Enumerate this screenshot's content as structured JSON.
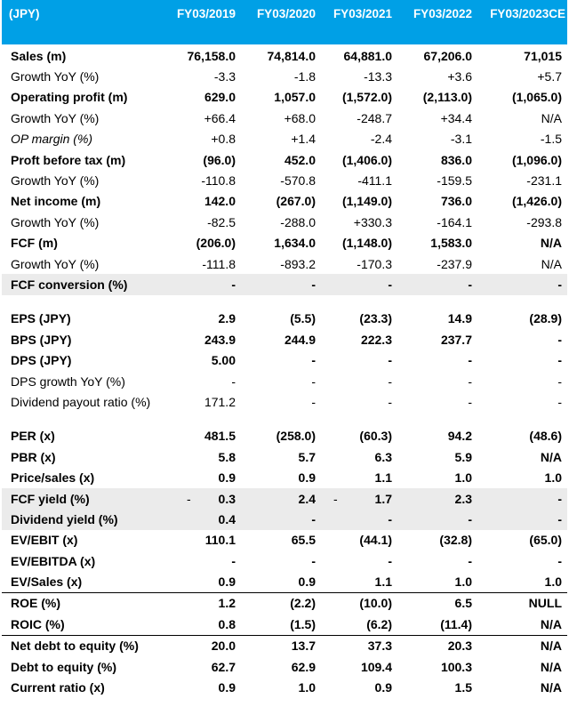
{
  "header": {
    "unit": "(JPY)",
    "years": [
      "FY03/2019",
      "FY03/2020",
      "FY03/2021",
      "FY03/2022",
      "FY03/2023CE"
    ]
  },
  "rows": [
    {
      "label": "Sales (m)",
      "values": [
        "76,158.0",
        "74,814.0",
        "64,881.0",
        "67,206.0",
        "71,015"
      ]
    },
    {
      "label": "Growth YoY (%)",
      "values": [
        "-3.3",
        "-1.8",
        "-13.3",
        "+3.6",
        "+5.7"
      ]
    },
    {
      "label": "Operating profit (m)",
      "values": [
        "629.0",
        "1,057.0",
        "(1,572.0)",
        "(2,113.0)",
        "(1,065.0)"
      ]
    },
    {
      "label": "Growth YoY (%)",
      "values": [
        "+66.4",
        "+68.0",
        "-248.7",
        "+34.4",
        "N/A"
      ]
    },
    {
      "label": "OP margin (%)",
      "values": [
        "+0.8",
        "+1.4",
        "-2.4",
        "-3.1",
        "-1.5"
      ]
    },
    {
      "label": "Proft before tax (m)",
      "values": [
        "(96.0)",
        "452.0",
        "(1,406.0)",
        "836.0",
        "(1,096.0)"
      ]
    },
    {
      "label": "Growth YoY (%)",
      "values": [
        "-110.8",
        "-570.8",
        "-411.1",
        "-159.5",
        "-231.1"
      ]
    },
    {
      "label": "Net income (m)",
      "values": [
        "142.0",
        "(267.0)",
        "(1,149.0)",
        "736.0",
        "(1,426.0)"
      ]
    },
    {
      "label": "Growth YoY (%)",
      "values": [
        "-82.5",
        "-288.0",
        "+330.3",
        "-164.1",
        "-293.8"
      ]
    },
    {
      "label": "FCF (m)",
      "values": [
        "(206.0)",
        "1,634.0",
        "(1,148.0)",
        "1,583.0",
        "N/A"
      ]
    },
    {
      "label": "Growth YoY (%)",
      "values": [
        "-111.8",
        "-893.2",
        "-170.3",
        "-237.9",
        "N/A"
      ]
    },
    {
      "label": "FCF conversion (%)",
      "values": [
        "-",
        "-",
        "-",
        "-",
        "-"
      ]
    },
    {
      "label": "EPS (JPY)",
      "values": [
        "2.9",
        "(5.5)",
        "(23.3)",
        "14.9",
        "(28.9)"
      ]
    },
    {
      "label": "BPS (JPY)",
      "values": [
        "243.9",
        "244.9",
        "222.3",
        "237.7",
        "-"
      ]
    },
    {
      "label": "DPS (JPY)",
      "values": [
        "5.00",
        "-",
        "-",
        "-",
        "-"
      ]
    },
    {
      "label": "DPS growth YoY (%)",
      "values": [
        "-",
        "-",
        "-",
        "-",
        "-"
      ]
    },
    {
      "label": "Dividend payout ratio (%)",
      "values": [
        "171.2",
        "-",
        "-",
        "-",
        "-"
      ]
    },
    {
      "label": "PER (x)",
      "values": [
        "481.5",
        "(258.0)",
        "(60.3)",
        "94.2",
        "(48.6)"
      ]
    },
    {
      "label": "PBR (x)",
      "values": [
        "5.8",
        "5.7",
        "6.3",
        "5.9",
        "N/A"
      ]
    },
    {
      "label": "Price/sales (x)",
      "values": [
        "0.9",
        "0.9",
        "1.1",
        "1.0",
        "1.0"
      ]
    },
    {
      "label": "FCF yield (%)",
      "values": [
        "0.3",
        "2.4",
        "1.7",
        "2.3",
        "-"
      ],
      "pre0": "-",
      "pre2": "-"
    },
    {
      "label": "Dividend yield (%)",
      "values": [
        "0.4",
        "-",
        "-",
        "-",
        "-"
      ]
    },
    {
      "label": "EV/EBIT (x)",
      "values": [
        "110.1",
        "65.5",
        "(44.1)",
        "(32.8)",
        "(65.0)"
      ]
    },
    {
      "label": "EV/EBITDA (x)",
      "values": [
        "-",
        "-",
        "-",
        "-",
        "-"
      ]
    },
    {
      "label": "EV/Sales (x)",
      "values": [
        "0.9",
        "0.9",
        "1.1",
        "1.0",
        "1.0"
      ]
    },
    {
      "label": "ROE (%)",
      "values": [
        "1.2",
        "(2.2)",
        "(10.0)",
        "6.5",
        "NULL"
      ]
    },
    {
      "label": "ROIC (%)",
      "values": [
        "0.8",
        "(1.5)",
        "(6.2)",
        "(11.4)",
        "N/A"
      ]
    },
    {
      "label": "Net debt to equity (%)",
      "values": [
        "20.0",
        "13.7",
        "37.3",
        "20.3",
        "N/A"
      ]
    },
    {
      "label": "Debt to equity (%)",
      "values": [
        "62.7",
        "62.9",
        "109.4",
        "100.3",
        "N/A"
      ]
    },
    {
      "label": "Current ratio (x)",
      "values": [
        "0.9",
        "1.0",
        "0.9",
        "1.5",
        "N/A"
      ]
    }
  ],
  "colors": {
    "header_bg": "#00a0e6",
    "header_text": "#ffffff",
    "shade": "#ebebeb"
  }
}
